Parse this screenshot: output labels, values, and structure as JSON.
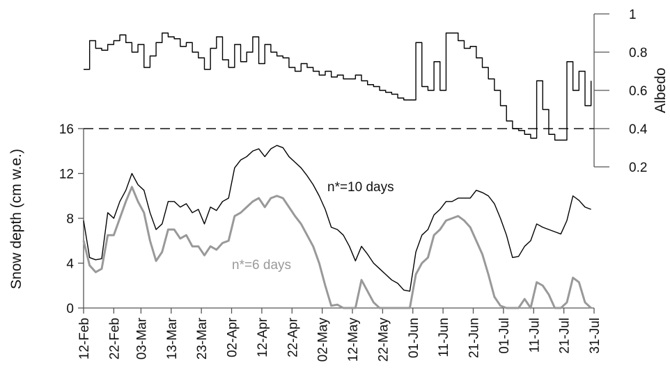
{
  "chart_data": {
    "type": "line",
    "ylabel": "Snow depth (cm w.e.)",
    "y2label": "Albedo",
    "annotations": [
      "n*=10 days",
      "n*=6 days"
    ],
    "x": [
      0,
      2,
      4,
      6,
      8,
      10,
      12,
      14,
      16,
      18,
      20,
      22,
      24,
      26,
      28,
      30,
      32,
      34,
      36,
      38,
      40,
      42,
      44,
      46,
      48,
      50,
      52,
      54,
      56,
      58,
      60,
      62,
      64,
      66,
      68,
      70,
      72,
      74,
      76,
      78,
      80,
      82,
      84,
      86,
      88,
      90,
      92,
      94,
      96,
      98,
      100,
      102,
      104,
      106,
      108,
      110,
      112,
      114,
      116,
      118,
      120,
      122,
      124,
      126,
      128,
      130,
      132,
      134,
      136,
      138,
      140,
      142,
      144,
      146,
      148,
      150,
      152,
      154,
      156,
      158,
      160,
      162,
      164,
      166,
      168
    ],
    "xlim": [
      0,
      169
    ],
    "xticks": [
      {
        "value": 0,
        "label": "12-Feb"
      },
      {
        "value": 10,
        "label": "22-Feb"
      },
      {
        "value": 19,
        "label": "03-Mar"
      },
      {
        "value": 29,
        "label": "13-Mar"
      },
      {
        "value": 39,
        "label": "23-Mar"
      },
      {
        "value": 49,
        "label": "02-Apr"
      },
      {
        "value": 59,
        "label": "12-Apr"
      },
      {
        "value": 69,
        "label": "22-Apr"
      },
      {
        "value": 79,
        "label": "02-May"
      },
      {
        "value": 89,
        "label": "12-May"
      },
      {
        "value": 99,
        "label": "22-May"
      },
      {
        "value": 109,
        "label": "01-Jun"
      },
      {
        "value": 119,
        "label": "11-Jun"
      },
      {
        "value": 129,
        "label": "21-Jun"
      },
      {
        "value": 139,
        "label": "01-Jul"
      },
      {
        "value": 149,
        "label": "11-Jul"
      },
      {
        "value": 159,
        "label": "21-Jul"
      },
      {
        "value": 169,
        "label": "31-Jul"
      }
    ],
    "ylim": [
      0,
      16
    ],
    "yticks": [
      0,
      4,
      8,
      12,
      16
    ],
    "y2lim": [
      0.2,
      1
    ],
    "y2ticks": [
      0.2,
      0.4,
      0.6,
      0.8,
      1
    ],
    "reference_line_y2": 0.4,
    "series": [
      {
        "name": "n*=10 days",
        "color": "#000000",
        "values": [
          7.8,
          4.5,
          4.3,
          4.4,
          8.5,
          8.0,
          9.5,
          10.5,
          12.0,
          11.0,
          10.5,
          8.5,
          7.0,
          7.5,
          9.5,
          9.5,
          9.0,
          9.3,
          8.5,
          8.8,
          7.5,
          9.0,
          8.7,
          9.5,
          9.8,
          12.5,
          13.2,
          13.5,
          14.0,
          14.2,
          13.5,
          14.2,
          14.5,
          14.3,
          13.5,
          13.0,
          12.5,
          11.8,
          11.0,
          10.0,
          8.8,
          7.2,
          7.0,
          6.5,
          5.5,
          4.2,
          5.5,
          4.8,
          4.0,
          3.5,
          3.0,
          2.5,
          2.2,
          1.6,
          1.5,
          5.0,
          6.5,
          7.0,
          8.3,
          8.8,
          9.5,
          9.5,
          9.8,
          9.8,
          9.8,
          10.5,
          10.3,
          10.0,
          9.3,
          8.0,
          6.5,
          4.5,
          4.6,
          5.5,
          6.0,
          7.5,
          7.2,
          7.0,
          6.8,
          6.6,
          7.8,
          10.0,
          9.6,
          9.0,
          8.8
        ]
      },
      {
        "name": "n*=6 days",
        "color": "#999999",
        "values": [
          6.0,
          3.8,
          3.2,
          3.5,
          6.5,
          6.5,
          8.0,
          9.5,
          10.8,
          9.5,
          8.5,
          6.0,
          4.2,
          5.0,
          7.0,
          7.0,
          6.2,
          6.5,
          5.5,
          5.5,
          4.7,
          5.5,
          5.2,
          5.8,
          6.0,
          8.2,
          8.5,
          9.0,
          9.5,
          9.8,
          9.0,
          9.8,
          10.0,
          9.8,
          9.0,
          8.2,
          7.5,
          6.5,
          5.5,
          4.0,
          2.0,
          0.2,
          0.3,
          0,
          0,
          0,
          2.5,
          1.5,
          0.5,
          0,
          0,
          0,
          0,
          0,
          0,
          3.0,
          4.0,
          4.5,
          6.5,
          7.0,
          7.8,
          8.0,
          8.2,
          7.8,
          7.2,
          6.0,
          4.8,
          3.0,
          1.0,
          0.2,
          0,
          0,
          0,
          0.8,
          0,
          2.3,
          2.0,
          1.2,
          0,
          0,
          0.5,
          2.7,
          2.3,
          0.5,
          0
        ]
      },
      {
        "name": "Albedo",
        "color": "#000000",
        "axis": "y2",
        "step": true,
        "values": [
          0.71,
          0.86,
          0.82,
          0.81,
          0.84,
          0.86,
          0.89,
          0.85,
          0.8,
          0.84,
          0.72,
          0.78,
          0.85,
          0.9,
          0.88,
          0.87,
          0.83,
          0.85,
          0.8,
          0.77,
          0.71,
          0.82,
          0.88,
          0.76,
          0.72,
          0.84,
          0.75,
          0.8,
          0.88,
          0.74,
          0.84,
          0.8,
          0.78,
          0.77,
          0.72,
          0.7,
          0.74,
          0.72,
          0.7,
          0.68,
          0.7,
          0.67,
          0.68,
          0.66,
          0.66,
          0.68,
          0.65,
          0.63,
          0.62,
          0.6,
          0.59,
          0.58,
          0.56,
          0.55,
          0.55,
          0.85,
          0.62,
          0.6,
          0.75,
          0.6,
          0.9,
          0.9,
          0.86,
          0.82,
          0.83,
          0.77,
          0.72,
          0.66,
          0.6,
          0.52,
          0.44,
          0.4,
          0.39,
          0.37,
          0.35,
          0.65,
          0.5,
          0.37,
          0.34,
          0.34,
          0.75,
          0.6,
          0.7,
          0.52,
          0.65
        ]
      }
    ]
  }
}
